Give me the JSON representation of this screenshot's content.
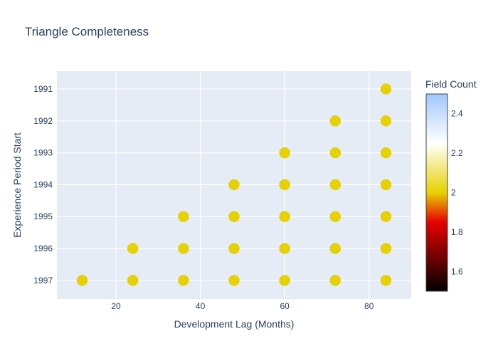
{
  "chart_data": {
    "type": "scatter",
    "title": "Triangle Completeness",
    "xlabel": "Development Lag (Months)",
    "ylabel": "Experience Period Start",
    "xlim": [
      6,
      90
    ],
    "xticks": [
      20,
      40,
      60,
      80
    ],
    "y_categories": [
      "1991",
      "1992",
      "1993",
      "1994",
      "1995",
      "1996",
      "1997"
    ],
    "points": [
      {
        "x": 84,
        "y": "1991",
        "value": 2
      },
      {
        "x": 72,
        "y": "1992",
        "value": 2
      },
      {
        "x": 84,
        "y": "1992",
        "value": 2
      },
      {
        "x": 60,
        "y": "1993",
        "value": 2
      },
      {
        "x": 72,
        "y": "1993",
        "value": 2
      },
      {
        "x": 84,
        "y": "1993",
        "value": 2
      },
      {
        "x": 48,
        "y": "1994",
        "value": 2
      },
      {
        "x": 60,
        "y": "1994",
        "value": 2
      },
      {
        "x": 72,
        "y": "1994",
        "value": 2
      },
      {
        "x": 84,
        "y": "1994",
        "value": 2
      },
      {
        "x": 36,
        "y": "1995",
        "value": 2
      },
      {
        "x": 48,
        "y": "1995",
        "value": 2
      },
      {
        "x": 60,
        "y": "1995",
        "value": 2
      },
      {
        "x": 72,
        "y": "1995",
        "value": 2
      },
      {
        "x": 84,
        "y": "1995",
        "value": 2
      },
      {
        "x": 24,
        "y": "1996",
        "value": 2
      },
      {
        "x": 36,
        "y": "1996",
        "value": 2
      },
      {
        "x": 48,
        "y": "1996",
        "value": 2
      },
      {
        "x": 60,
        "y": "1996",
        "value": 2
      },
      {
        "x": 72,
        "y": "1996",
        "value": 2
      },
      {
        "x": 84,
        "y": "1996",
        "value": 2
      },
      {
        "x": 12,
        "y": "1997",
        "value": 2
      },
      {
        "x": 24,
        "y": "1997",
        "value": 2
      },
      {
        "x": 36,
        "y": "1997",
        "value": 2
      },
      {
        "x": 48,
        "y": "1997",
        "value": 2
      },
      {
        "x": 60,
        "y": "1997",
        "value": 2
      },
      {
        "x": 72,
        "y": "1997",
        "value": 2
      },
      {
        "x": 84,
        "y": "1997",
        "value": 2
      }
    ],
    "colorbar": {
      "title": "Field Count",
      "range": [
        1.5,
        2.5
      ],
      "ticks": [
        1.6,
        1.8,
        2,
        2.2,
        2.4
      ],
      "colorscale": [
        [
          0.0,
          "#000000"
        ],
        [
          0.35,
          "#e60000"
        ],
        [
          0.5,
          "#e6d200"
        ],
        [
          0.75,
          "#ffffff"
        ],
        [
          1.0,
          "#a0c8ff"
        ]
      ]
    },
    "grid": true,
    "legend": "none",
    "marker_color": "#e6d200",
    "plot_background": "#e5ecf6"
  }
}
